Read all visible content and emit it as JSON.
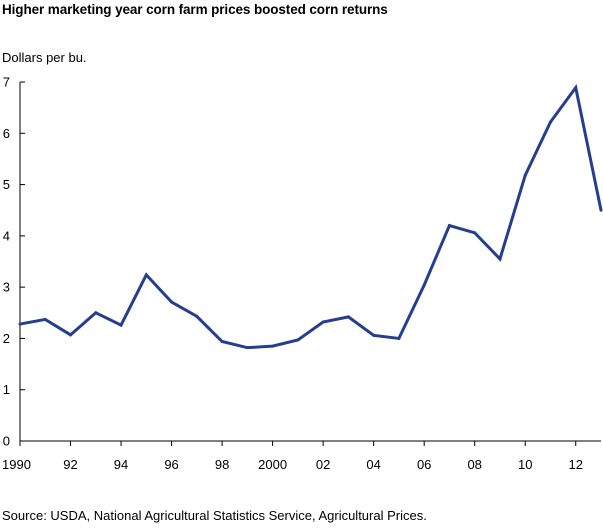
{
  "title": "Higher marketing year corn farm prices boosted corn returns",
  "source": "Source:  USDA, National Agricultural Statistics Service, Agricultural Prices.",
  "chart_data": {
    "type": "line",
    "title": "Higher marketing year corn farm prices boosted corn returns",
    "ylabel": "Dollars per bu.",
    "xlabel": "",
    "xlim": [
      1990,
      2013
    ],
    "ylim": [
      0,
      7
    ],
    "yticks": [
      0,
      1,
      2,
      3,
      4,
      5,
      6,
      7
    ],
    "xticks": [
      {
        "value": 1990,
        "label": "1990"
      },
      {
        "value": 1992,
        "label": "92"
      },
      {
        "value": 1994,
        "label": "94"
      },
      {
        "value": 1996,
        "label": "96"
      },
      {
        "value": 1998,
        "label": "98"
      },
      {
        "value": 2000,
        "label": "2000"
      },
      {
        "value": 2002,
        "label": "02"
      },
      {
        "value": 2004,
        "label": "04"
      },
      {
        "value": 2006,
        "label": "06"
      },
      {
        "value": 2008,
        "label": "08"
      },
      {
        "value": 2010,
        "label": "10"
      },
      {
        "value": 2012,
        "label": "12"
      }
    ],
    "grid": false,
    "line_color": "#253f8e",
    "x": [
      1990,
      1991,
      1992,
      1993,
      1994,
      1995,
      1996,
      1997,
      1998,
      1999,
      2000,
      2001,
      2002,
      2003,
      2004,
      2005,
      2006,
      2007,
      2008,
      2009,
      2010,
      2011,
      2012,
      2013
    ],
    "series": [
      {
        "values": [
          2.28,
          2.37,
          2.07,
          2.5,
          2.26,
          3.24,
          2.71,
          2.43,
          1.94,
          1.82,
          1.85,
          1.97,
          2.32,
          2.42,
          2.06,
          2.0,
          3.04,
          4.2,
          4.06,
          3.55,
          5.18,
          6.22,
          6.89,
          4.5
        ]
      }
    ]
  }
}
